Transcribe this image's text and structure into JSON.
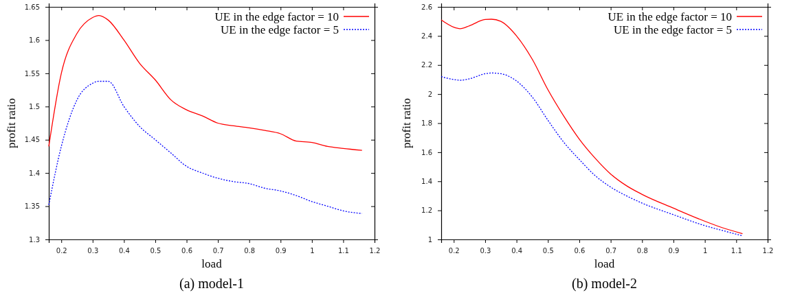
{
  "chart_data": [
    {
      "type": "line",
      "title": "(a) model-1",
      "xlabel": "load",
      "ylabel": "profit ratio",
      "xlim": [
        0.16,
        1.2
      ],
      "xticks": [
        0.2,
        0.3,
        0.4,
        0.5,
        0.6,
        0.7,
        0.8,
        0.9,
        1,
        1.1,
        1.2
      ],
      "ylim": [
        1.3,
        1.65
      ],
      "yticks": [
        1.3,
        1.35,
        1.4,
        1.45,
        1.5,
        1.55,
        1.6,
        1.65
      ],
      "legend": "top right",
      "grid": false,
      "marker": "none",
      "x": [
        0.16,
        0.2,
        0.25,
        0.3,
        0.32,
        0.35,
        0.4,
        0.45,
        0.5,
        0.55,
        0.6,
        0.65,
        0.7,
        0.75,
        0.8,
        0.85,
        0.9,
        0.95,
        1.0,
        1.05,
        1.1,
        1.16
      ],
      "series": [
        {
          "name": "UE in the edge factor = 10",
          "color": "#ff0000",
          "line_style": "solid",
          "values": [
            1.44,
            1.55,
            1.61,
            1.634,
            1.637,
            1.63,
            1.6,
            1.565,
            1.54,
            1.51,
            1.495,
            1.486,
            1.475,
            1.471,
            1.468,
            1.464,
            1.459,
            1.448,
            1.446,
            1.44,
            1.437,
            1.434
          ]
        },
        {
          "name": "UE in the edge factor = 5",
          "color": "#0000ff",
          "line_style": "dotted",
          "values": [
            1.352,
            1.44,
            1.51,
            1.535,
            1.538,
            1.538,
            1.5,
            1.47,
            1.45,
            1.43,
            1.41,
            1.4,
            1.392,
            1.387,
            1.384,
            1.377,
            1.373,
            1.366,
            1.357,
            1.35,
            1.343,
            1.339
          ]
        }
      ]
    },
    {
      "type": "line",
      "title": "(b) model-2",
      "xlabel": "load",
      "ylabel": "profit ratio",
      "xlim": [
        0.16,
        1.2
      ],
      "xticks": [
        0.2,
        0.3,
        0.4,
        0.5,
        0.6,
        0.7,
        0.8,
        0.9,
        1,
        1.1,
        1.2
      ],
      "ylim": [
        1,
        2.6
      ],
      "yticks": [
        1,
        1.2,
        1.4,
        1.6,
        1.8,
        2,
        2.2,
        2.4,
        2.6
      ],
      "legend": "top right",
      "grid": false,
      "marker": "none",
      "x": [
        0.16,
        0.2,
        0.22,
        0.25,
        0.3,
        0.32,
        0.35,
        0.4,
        0.45,
        0.5,
        0.55,
        0.6,
        0.65,
        0.7,
        0.75,
        0.8,
        0.9,
        1.0,
        1.05,
        1.12
      ],
      "series": [
        {
          "name": "UE in the edge factor = 10",
          "color": "#ff0000",
          "line_style": "solid",
          "values": [
            2.51,
            2.46,
            2.45,
            2.47,
            2.513,
            2.515,
            2.5,
            2.4,
            2.24,
            2.03,
            1.85,
            1.69,
            1.56,
            1.45,
            1.37,
            1.31,
            1.215,
            1.125,
            1.085,
            1.04
          ]
        },
        {
          "name": "UE in the edge factor = 5",
          "color": "#0000ff",
          "line_style": "dotted",
          "values": [
            2.12,
            2.1,
            2.095,
            2.105,
            2.14,
            2.145,
            2.14,
            2.09,
            1.98,
            1.82,
            1.67,
            1.55,
            1.44,
            1.36,
            1.3,
            1.25,
            1.17,
            1.095,
            1.065,
            1.025
          ]
        }
      ]
    }
  ]
}
